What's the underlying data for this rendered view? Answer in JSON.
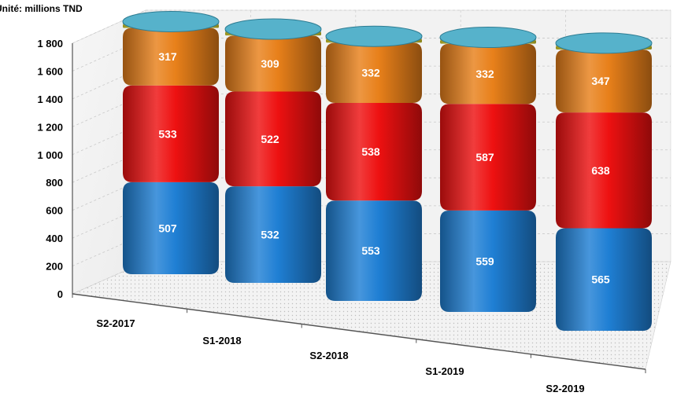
{
  "chart_data": {
    "type": "bar",
    "stacked": true,
    "unit_label": "Unité: millions TND",
    "categories": [
      "S2-2017",
      "S1-2018",
      "S2-2018",
      "S1-2019",
      "S2-2019"
    ],
    "ylim": [
      0,
      1800
    ],
    "yticks": [
      0,
      200,
      400,
      600,
      800,
      1000,
      1200,
      1400,
      1600,
      1800
    ],
    "ytick_labels": [
      "0",
      "200",
      "400",
      "600",
      "800",
      "1 000",
      "1 200",
      "1 400",
      "1 600",
      "1 800"
    ],
    "series": [
      {
        "color": "#1f7fd4",
        "values": [
          507,
          532,
          553,
          559,
          565
        ]
      },
      {
        "color": "#ee1111",
        "values": [
          533,
          522,
          538,
          587,
          638
        ]
      },
      {
        "color": "#e8801a",
        "values": [
          317,
          309,
          332,
          332,
          347
        ]
      },
      {
        "color": "#e8e030",
        "values": [
          20,
          20,
          20,
          20,
          20
        ]
      },
      {
        "color": "#3fa7c4",
        "values": [
          15,
          15,
          15,
          15,
          15
        ]
      }
    ],
    "labeled_series": [
      0,
      1,
      2
    ],
    "grid": true,
    "legend": "none"
  }
}
